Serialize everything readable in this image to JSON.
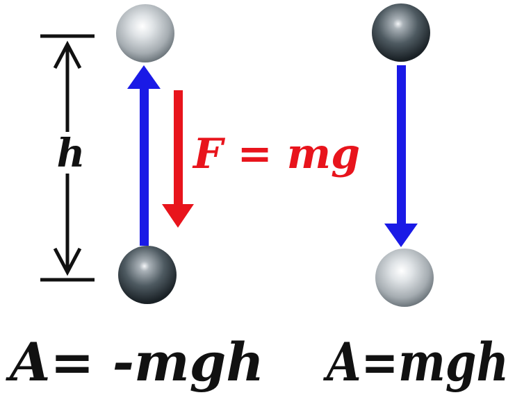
{
  "labels": {
    "height": "h",
    "force": "F = mg",
    "work_up": "A= -mgh",
    "work_down": "A=mgh"
  },
  "colors": {
    "background": "#ffffff",
    "force_arrow": "#e8141c",
    "motion_arrow": "#1a1ae6",
    "dimension": "#111111",
    "text": "#111111"
  },
  "icons": {
    "ball": "steel-ball-icon"
  }
}
